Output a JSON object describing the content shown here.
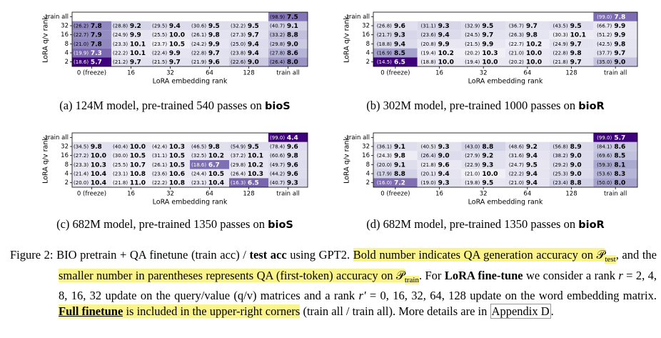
{
  "panels": [
    {
      "label": "(a)",
      "caption": "124M model, pre-trained 540 passes on",
      "dataset": "bioS",
      "x_label": "LoRA embedding rank",
      "y_label": "LoRA q/v rank",
      "x_ticks": [
        "0 (freeze)",
        "16",
        "32",
        "64",
        "128",
        "train all"
      ],
      "y_ticks": [
        "train all",
        "32",
        "16",
        "8",
        "4",
        "2"
      ],
      "corner": {
        "train": "(98.9)",
        "test": "7.5"
      },
      "rows": [
        [
          {
            "train": "(26.2)",
            "test": "7.8"
          },
          {
            "train": "(28.8)",
            "test": "9.2"
          },
          {
            "train": "(29.5)",
            "test": "9.4"
          },
          {
            "train": "(30.6)",
            "test": "9.5"
          },
          {
            "train": "(32.2)",
            "test": "9.5"
          },
          {
            "train": "(40.7)",
            "test": "9.1"
          }
        ],
        [
          {
            "train": "(22.7)",
            "test": "7.9"
          },
          {
            "train": "(24.9)",
            "test": "9.9"
          },
          {
            "train": "(25.5)",
            "test": "10.0"
          },
          {
            "train": "(26.1)",
            "test": "9.8"
          },
          {
            "train": "(27.3)",
            "test": "9.7"
          },
          {
            "train": "(33.2)",
            "test": "8.8"
          }
        ],
        [
          {
            "train": "(21.0)",
            "test": "7.8"
          },
          {
            "train": "(23.3)",
            "test": "10.1"
          },
          {
            "train": "(23.7)",
            "test": "10.5"
          },
          {
            "train": "(24.2)",
            "test": "9.9"
          },
          {
            "train": "(25.0)",
            "test": "9.4"
          },
          {
            "train": "(29.8)",
            "test": "9.0"
          }
        ],
        [
          {
            "train": "(19.9)",
            "test": "7.3"
          },
          {
            "train": "(22.2)",
            "test": "10.1"
          },
          {
            "train": "(22.4)",
            "test": "9.9"
          },
          {
            "train": "(22.8)",
            "test": "9.7"
          },
          {
            "train": "(23.8)",
            "test": "9.4"
          },
          {
            "train": "(27.8)",
            "test": "8.6"
          }
        ],
        [
          {
            "train": "(18.6)",
            "test": "5.7"
          },
          {
            "train": "(21.2)",
            "test": "9.7"
          },
          {
            "train": "(21.5)",
            "test": "9.7"
          },
          {
            "train": "(21.9)",
            "test": "9.6"
          },
          {
            "train": "(22.6)",
            "test": "9.0"
          },
          {
            "train": "(26.4)",
            "test": "8.0"
          }
        ]
      ]
    },
    {
      "label": "(b)",
      "caption": "302M model, pre-trained 1000 passes on",
      "dataset": "bioR",
      "x_label": "LoRA embedding rank",
      "y_label": "LoRA q/v rank",
      "x_ticks": [
        "0 (freeze)",
        "16",
        "32",
        "64",
        "128",
        "train all"
      ],
      "y_ticks": [
        "train all",
        "32",
        "16",
        "8",
        "4",
        "2"
      ],
      "corner": {
        "train": "(99.0)",
        "test": "7.8"
      },
      "rows": [
        [
          {
            "train": "(26.8)",
            "test": "9.6"
          },
          {
            "train": "(31.1)",
            "test": "9.3"
          },
          {
            "train": "(32.9)",
            "test": "9.5"
          },
          {
            "train": "(36.7)",
            "test": "9.7"
          },
          {
            "train": "(43.5)",
            "test": "9.5"
          },
          {
            "train": "(66.7)",
            "test": "9.9"
          }
        ],
        [
          {
            "train": "(21.7)",
            "test": "9.3"
          },
          {
            "train": "(23.6)",
            "test": "9.4"
          },
          {
            "train": "(24.5)",
            "test": "9.7"
          },
          {
            "train": "(26.3)",
            "test": "9.8"
          },
          {
            "train": "(30.3)",
            "test": "10.1"
          },
          {
            "train": "(51.2)",
            "test": "9.9"
          }
        ],
        [
          {
            "train": "(18.8)",
            "test": "9.4"
          },
          {
            "train": "(20.8)",
            "test": "9.9"
          },
          {
            "train": "(21.5)",
            "test": "9.9"
          },
          {
            "train": "(22.7)",
            "test": "10.2"
          },
          {
            "train": "(24.9)",
            "test": "9.7"
          },
          {
            "train": "(42.5)",
            "test": "9.8"
          }
        ],
        [
          {
            "train": "(16.9)",
            "test": "8.5"
          },
          {
            "train": "(19.4)",
            "test": "10.2"
          },
          {
            "train": "(20.2)",
            "test": "10.3"
          },
          {
            "train": "(21.0)",
            "test": "10.0"
          },
          {
            "train": "(22.8)",
            "test": "9.8"
          },
          {
            "train": "(37.7)",
            "test": "9.7"
          }
        ],
        [
          {
            "train": "(14.5)",
            "test": "6.5"
          },
          {
            "train": "(18.8)",
            "test": "10.0"
          },
          {
            "train": "(19.4)",
            "test": "10.0"
          },
          {
            "train": "(20.2)",
            "test": "10.0"
          },
          {
            "train": "(21.8)",
            "test": "9.7"
          },
          {
            "train": "(35.0)",
            "test": "9.0"
          }
        ]
      ]
    },
    {
      "label": "(c)",
      "caption": "682M model, pre-trained 1350 passes on",
      "dataset": "bioS",
      "x_label": "LoRA embedding rank",
      "y_label": "LoRA q/v rank",
      "x_ticks": [
        "0 (freeze)",
        "16",
        "32",
        "64",
        "128",
        "train all"
      ],
      "y_ticks": [
        "train all",
        "32",
        "16",
        "8",
        "4",
        "2"
      ],
      "corner": {
        "train": "(99.0)",
        "test": "4.4"
      },
      "rows": [
        [
          {
            "train": "(34.5)",
            "test": "9.8"
          },
          {
            "train": "(40.4)",
            "test": "10.0"
          },
          {
            "train": "(42.4)",
            "test": "10.3"
          },
          {
            "train": "(46.5)",
            "test": "9.8"
          },
          {
            "train": "(54.9)",
            "test": "9.5"
          },
          {
            "train": "(78.4)",
            "test": "9.6"
          }
        ],
        [
          {
            "train": "(27.2)",
            "test": "10.0"
          },
          {
            "train": "(30.0)",
            "test": "10.5"
          },
          {
            "train": "(31.1)",
            "test": "10.5"
          },
          {
            "train": "(32.5)",
            "test": "10.2"
          },
          {
            "train": "(37.2)",
            "test": "10.1"
          },
          {
            "train": "(60.6)",
            "test": "9.8"
          }
        ],
        [
          {
            "train": "(23.3)",
            "test": "10.3"
          },
          {
            "train": "(25.5)",
            "test": "10.7"
          },
          {
            "train": "(26.1)",
            "test": "10.5"
          },
          {
            "train": "(18.6)",
            "test": "6.7"
          },
          {
            "train": "(29.8)",
            "test": "10.2"
          },
          {
            "train": "(49.7)",
            "test": "9.6"
          }
        ],
        [
          {
            "train": "(21.4)",
            "test": "10.4"
          },
          {
            "train": "(23.1)",
            "test": "10.8"
          },
          {
            "train": "(23.6)",
            "test": "10.6"
          },
          {
            "train": "(24.4)",
            "test": "10.5"
          },
          {
            "train": "(26.4)",
            "test": "10.3"
          },
          {
            "train": "(44.2)",
            "test": "9.6"
          }
        ],
        [
          {
            "train": "(20.0)",
            "test": "10.4"
          },
          {
            "train": "(21.8)",
            "test": "11.0"
          },
          {
            "train": "(22.2)",
            "test": "10.8"
          },
          {
            "train": "(23.1)",
            "test": "10.4"
          },
          {
            "train": "(16.3)",
            "test": "6.5"
          },
          {
            "train": "(40.7)",
            "test": "9.3"
          }
        ]
      ]
    },
    {
      "label": "(d)",
      "caption": "682M model, pre-trained 1350 passes on",
      "dataset": "bioR",
      "x_label": "LoRA embedding rank",
      "y_label": "LoRA q/v rank",
      "x_ticks": [
        "0 (freeze)",
        "16",
        "32",
        "64",
        "128",
        "train all"
      ],
      "y_ticks": [
        "train all",
        "32",
        "16",
        "8",
        "4",
        "2"
      ],
      "corner": {
        "train": "(99.0)",
        "test": "5.7"
      },
      "rows": [
        [
          {
            "train": "(36.1)",
            "test": "9.1"
          },
          {
            "train": "(40.5)",
            "test": "9.3"
          },
          {
            "train": "(43.0)",
            "test": "8.8"
          },
          {
            "train": "(48.6)",
            "test": "9.2"
          },
          {
            "train": "(56.8)",
            "test": "8.9"
          },
          {
            "train": "(84.1)",
            "test": "8.6"
          }
        ],
        [
          {
            "train": "(24.3)",
            "test": "9.8"
          },
          {
            "train": "(26.4)",
            "test": "9.0"
          },
          {
            "train": "(27.9)",
            "test": "9.2"
          },
          {
            "train": "(31.6)",
            "test": "9.4"
          },
          {
            "train": "(38.2)",
            "test": "9.0"
          },
          {
            "train": "(69.6)",
            "test": "8.5"
          }
        ],
        [
          {
            "train": "(20.0)",
            "test": "9.1"
          },
          {
            "train": "(21.8)",
            "test": "9.6"
          },
          {
            "train": "(22.9)",
            "test": "9.3"
          },
          {
            "train": "(24.7)",
            "test": "9.5"
          },
          {
            "train": "(29.2)",
            "test": "9.0"
          },
          {
            "train": "(59.3)",
            "test": "8.1"
          }
        ],
        [
          {
            "train": "(17.9)",
            "test": "8.8"
          },
          {
            "train": "(20.1)",
            "test": "9.4"
          },
          {
            "train": "(21.0)",
            "test": "10.0"
          },
          {
            "train": "(22.2)",
            "test": "9.4"
          },
          {
            "train": "(25.3)",
            "test": "9.0"
          },
          {
            "train": "(53.6)",
            "test": "8.3"
          }
        ],
        [
          {
            "train": "(16.0)",
            "test": "7.2"
          },
          {
            "train": "(19.0)",
            "test": "9.3"
          },
          {
            "train": "(19.8)",
            "test": "9.5"
          },
          {
            "train": "(21.0)",
            "test": "9.4"
          },
          {
            "train": "(23.4)",
            "test": "8.8"
          },
          {
            "train": "(50.0)",
            "test": "8.0"
          }
        ]
      ]
    }
  ],
  "figure_caption": {
    "label": "Figure 2:",
    "segments": [
      {
        "text": " BIO pretrain + QA finetune (train acc) / "
      },
      {
        "text": "test acc",
        "bold": true
      },
      {
        "text": " using GPT2. "
      },
      {
        "text": "Bold number indicates QA generation accuracy on ",
        "highlight": true
      },
      {
        "text": "𝒫",
        "highlight": true,
        "sub": "test"
      },
      {
        "text": ", and the "
      },
      {
        "text": "smaller number in parentheses represents QA (first-token) accuracy on ",
        "highlight": true
      },
      {
        "text": "𝒫",
        "highlight": true,
        "sub": "train"
      },
      {
        "text": ". For "
      },
      {
        "text": "LoRA fine-tune",
        "bold": true
      },
      {
        "text": " we consider a rank "
      },
      {
        "text": "r",
        "italic": true
      },
      {
        "text": " = 2, 4, 8, 16, 32 update on the query/value (q/v) matrices and a rank "
      },
      {
        "text": "r′",
        "italic": true
      },
      {
        "text": " = 0, 16, 32, 64, 128 update on the word embedding matrix. "
      },
      {
        "text": "Full finetune",
        "bold": true,
        "underline": true,
        "highlight": true
      },
      {
        "text": " is included in the upper-right corners",
        "highlight": true
      },
      {
        "text": " (train all / train all). More details are in "
      },
      {
        "text": "Appendix D",
        "boxed": true
      },
      {
        "text": "."
      }
    ]
  }
}
